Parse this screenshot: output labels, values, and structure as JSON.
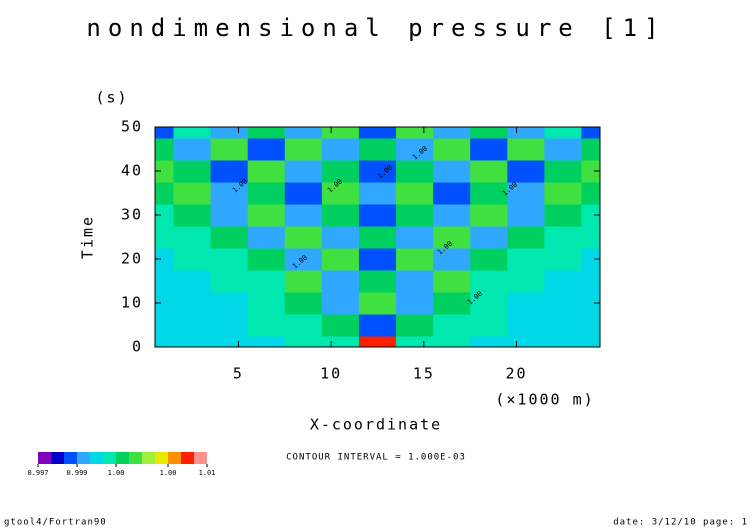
{
  "chart_data": {
    "type": "contour",
    "title": "nondimensional pressure [1]",
    "x_label": "X-coordinate",
    "x_unit": "(×1000 m)",
    "y_label": "Time",
    "y_unit": "(s)",
    "xlim": [
      0.5,
      24.5
    ],
    "xticks": [
      5,
      10,
      15,
      20
    ],
    "ylim": [
      0,
      50
    ],
    "yticks": [
      0,
      10,
      20,
      30,
      40,
      50
    ],
    "x": [
      0.5,
      2.5,
      4.5,
      6.5,
      8.5,
      10.5,
      12.5,
      14.5,
      16.5,
      18.5,
      20.5,
      22.5,
      24.5
    ],
    "y": [
      0,
      5,
      10,
      15,
      20,
      25,
      30,
      35,
      40,
      45,
      50
    ],
    "z": [
      [
        0.9996,
        0.9996,
        0.9996,
        0.9996,
        0.9999,
        0.9999,
        1.006,
        0.9999,
        0.9999,
        0.9996,
        0.9996,
        0.9996,
        0.9996
      ],
      [
        0.9996,
        0.9996,
        0.9996,
        0.9999,
        0.9999,
        1.0001,
        0.9987,
        1.0001,
        0.9999,
        0.9999,
        0.9996,
        0.9996,
        0.9996
      ],
      [
        0.9996,
        0.9996,
        0.9996,
        0.9999,
        1.0001,
        0.9992,
        1.0003,
        0.9992,
        1.0001,
        0.9999,
        0.9996,
        0.9996,
        0.9996
      ],
      [
        0.9996,
        0.9996,
        0.9999,
        0.9999,
        1.0003,
        0.9992,
        1.0001,
        0.9992,
        1.0003,
        0.9999,
        0.9999,
        0.9996,
        0.9996
      ],
      [
        0.9996,
        0.9999,
        0.9999,
        1.0001,
        0.9992,
        1.0003,
        0.9987,
        1.0003,
        0.9992,
        1.0001,
        0.9999,
        0.9999,
        0.9996
      ],
      [
        0.9999,
        0.9999,
        1.0001,
        0.9992,
        1.0003,
        0.9992,
        1.0001,
        0.9992,
        1.0003,
        0.9992,
        1.0001,
        0.9999,
        0.9999
      ],
      [
        0.9999,
        1.0001,
        0.9992,
        1.0003,
        0.9992,
        1.0001,
        0.9987,
        1.0001,
        0.9992,
        1.0003,
        0.9992,
        1.0001,
        0.9999
      ],
      [
        1.0001,
        1.0003,
        0.9992,
        1.0001,
        0.9987,
        1.0003,
        0.9992,
        1.0003,
        0.9987,
        1.0001,
        0.9992,
        1.0003,
        1.0001
      ],
      [
        1.0003,
        1.0001,
        0.9987,
        1.0003,
        0.9992,
        1.0001,
        0.9987,
        1.0001,
        0.9992,
        1.0003,
        0.9987,
        1.0001,
        1.0003
      ],
      [
        1.0001,
        0.9992,
        1.0003,
        0.9987,
        1.0003,
        0.9992,
        1.0001,
        0.9992,
        1.0003,
        0.9987,
        1.0003,
        0.9992,
        1.0001
      ],
      [
        0.9987,
        0.9999,
        0.9992,
        1.0001,
        0.9992,
        1.0003,
        0.9987,
        1.0003,
        0.9992,
        1.0001,
        0.9992,
        0.9999,
        0.9987
      ]
    ],
    "levels": [
      0.997,
      0.998,
      0.9985,
      0.999,
      0.9995,
      0.9998,
      1.0,
      1.0002,
      1.0005,
      1.001,
      1.002,
      1.005,
      1.008,
      1.01
    ],
    "colors": [
      "#8000c0",
      "#0000c8",
      "#0050ff",
      "#30a8ff",
      "#00d8e8",
      "#00e8b0",
      "#00d060",
      "#40e040",
      "#a0f040",
      "#e8e800",
      "#ff9000",
      "#ff2000",
      "#ff9090"
    ],
    "colorbar_ticks": [
      {
        "value": 0.997,
        "label": "0.997"
      },
      {
        "value": 0.999,
        "label": "0.999"
      },
      {
        "value": 1.0,
        "label": "1.00"
      },
      {
        "value": 1.002,
        "label": "1.00"
      },
      {
        "value": 1.01,
        "label": "1.01"
      }
    ],
    "contour_label": "1.00",
    "contour_interval": "CONTOUR INTERVAL = 1.000E-03",
    "footer_left": "gtool4/Fortran90",
    "footer_right": "date: 3/12/10 page: 1"
  }
}
